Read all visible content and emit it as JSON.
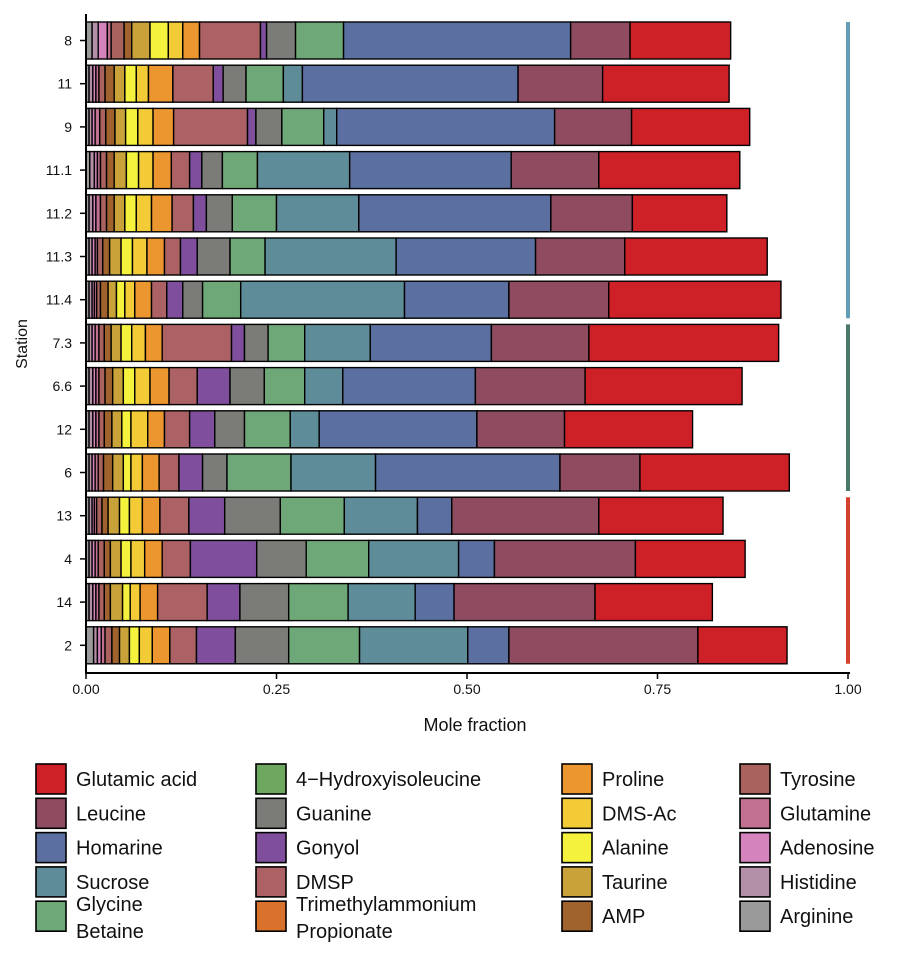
{
  "chart_data": {
    "type": "bar",
    "orientation": "horizontal",
    "stacked": true,
    "xlabel": "Mole fraction",
    "ylabel": "Station",
    "xlim": [
      0,
      1
    ],
    "xticks": [
      "0.00",
      "0.25",
      "0.50",
      "0.75",
      "1.00"
    ],
    "grid": false,
    "legend_position": "bottom",
    "categories": [
      "8",
      "11",
      "9",
      "11.1",
      "11.2",
      "11.3",
      "11.4",
      "7.3",
      "6.6",
      "12",
      "6",
      "13",
      "4",
      "14",
      "2"
    ],
    "stack_order": [
      "Arginine",
      "Histidine",
      "Adenosine",
      "Glutamine",
      "Tyrosine",
      "AMP",
      "Taurine",
      "Alanine",
      "DMS-Ac",
      "Proline",
      "Trimethylammonium Propionate",
      "DMSP",
      "Gonyol",
      "Guanine",
      "4−Hydroxyisoleucine",
      "Glycine Betaine",
      "Sucrose",
      "Homarine",
      "Leucine",
      "Glutamic acid"
    ],
    "series": [
      {
        "name": "Arginine",
        "color": "#9a9a9a",
        "values": [
          0.008,
          0.004,
          0.004,
          0.005,
          0.004,
          0.004,
          0.004,
          0.004,
          0.004,
          0.004,
          0.004,
          0.004,
          0.004,
          0.004,
          0.01
        ]
      },
      {
        "name": "Histidine",
        "color": "#b48fa8",
        "values": [
          0.008,
          0.005,
          0.004,
          0.006,
          0.005,
          0.004,
          0.004,
          0.004,
          0.005,
          0.005,
          0.004,
          0.004,
          0.004,
          0.005,
          0.005
        ]
      },
      {
        "name": "Adenosine",
        "color": "#d483bd",
        "values": [
          0.012,
          0.004,
          0.004,
          0.004,
          0.004,
          0.004,
          0.003,
          0.004,
          0.004,
          0.004,
          0.004,
          0.003,
          0.004,
          0.004,
          0.005
        ]
      },
      {
        "name": "Glutamine",
        "color": "#c2708f",
        "values": [
          0.005,
          0.004,
          0.006,
          0.004,
          0.006,
          0.003,
          0.003,
          0.005,
          0.004,
          0.004,
          0.004,
          0.003,
          0.004,
          0.004,
          0.005
        ]
      },
      {
        "name": "Tyrosine",
        "color": "#a9625e",
        "values": [
          0.017,
          0.008,
          0.008,
          0.008,
          0.008,
          0.007,
          0.005,
          0.007,
          0.008,
          0.007,
          0.007,
          0.007,
          0.008,
          0.007,
          0.009
        ]
      },
      {
        "name": "AMP",
        "color": "#a0632e",
        "values": [
          0.01,
          0.012,
          0.012,
          0.01,
          0.01,
          0.009,
          0.01,
          0.009,
          0.01,
          0.01,
          0.012,
          0.008,
          0.008,
          0.008,
          0.01
        ]
      },
      {
        "name": "Taurine",
        "color": "#c9a33a",
        "values": [
          0.024,
          0.014,
          0.014,
          0.016,
          0.014,
          0.015,
          0.011,
          0.013,
          0.014,
          0.013,
          0.014,
          0.015,
          0.014,
          0.016,
          0.013
        ]
      },
      {
        "name": "Alanine",
        "color": "#f5f23e",
        "values": [
          0.024,
          0.015,
          0.016,
          0.016,
          0.015,
          0.015,
          0.011,
          0.014,
          0.015,
          0.012,
          0.01,
          0.013,
          0.013,
          0.01,
          0.013
        ]
      },
      {
        "name": "DMS-Ac",
        "color": "#f3cb37",
        "values": [
          0.019,
          0.016,
          0.02,
          0.019,
          0.02,
          0.019,
          0.013,
          0.018,
          0.02,
          0.022,
          0.015,
          0.017,
          0.018,
          0.013,
          0.017
        ]
      },
      {
        "name": "Proline",
        "color": "#ec962f",
        "values": [
          0.022,
          0.032,
          0.027,
          0.024,
          0.027,
          0.023,
          0.022,
          0.022,
          0.025,
          0.022,
          0.022,
          0.023,
          0.023,
          0.023,
          0.023
        ]
      },
      {
        "name": "Trimethylammonium Propionate",
        "color": "#d9722c",
        "values": [
          0.0,
          0.0,
          0.0,
          0.0,
          0.0,
          0.0,
          0.0,
          0.0,
          0.0,
          0.0,
          0.0,
          0.0,
          0.0,
          0.0,
          0.0
        ]
      },
      {
        "name": "DMSP",
        "color": "#ac6265",
        "values": [
          0.08,
          0.053,
          0.097,
          0.024,
          0.028,
          0.021,
          0.02,
          0.091,
          0.037,
          0.033,
          0.026,
          0.038,
          0.037,
          0.065,
          0.035
        ]
      },
      {
        "name": "Gonyol",
        "color": "#7f4f9e",
        "values": [
          0.008,
          0.013,
          0.011,
          0.016,
          0.017,
          0.022,
          0.021,
          0.017,
          0.043,
          0.033,
          0.031,
          0.047,
          0.087,
          0.043,
          0.051
        ]
      },
      {
        "name": "Guanine",
        "color": "#7b7b78",
        "values": [
          0.038,
          0.03,
          0.034,
          0.027,
          0.034,
          0.043,
          0.026,
          0.031,
          0.045,
          0.039,
          0.032,
          0.073,
          0.065,
          0.064,
          0.07
        ]
      },
      {
        "name": "4−Hydroxyisoleucine",
        "color": "#6ea75f",
        "values": [
          0.0,
          0.0,
          0.0,
          0.0,
          0.0,
          0.0,
          0.0,
          0.0,
          0.0,
          0.0,
          0.0,
          0.0,
          0.0,
          0.0,
          0.0
        ]
      },
      {
        "name": "Glycine Betaine",
        "color": "#6fa878",
        "values": [
          0.063,
          0.049,
          0.055,
          0.046,
          0.058,
          0.046,
          0.05,
          0.048,
          0.053,
          0.06,
          0.084,
          0.084,
          0.082,
          0.078,
          0.093
        ]
      },
      {
        "name": "Sucrose",
        "color": "#5e8d99",
        "values": [
          0.0,
          0.025,
          0.017,
          0.121,
          0.108,
          0.172,
          0.215,
          0.086,
          0.05,
          0.038,
          0.111,
          0.096,
          0.118,
          0.088,
          0.142
        ]
      },
      {
        "name": "Homarine",
        "color": "#5b70a1",
        "values": [
          0.298,
          0.283,
          0.286,
          0.212,
          0.252,
          0.183,
          0.137,
          0.159,
          0.174,
          0.207,
          0.242,
          0.045,
          0.047,
          0.051,
          0.054
        ]
      },
      {
        "name": "Leucine",
        "color": "#8f4b5f",
        "values": [
          0.078,
          0.111,
          0.101,
          0.115,
          0.107,
          0.117,
          0.131,
          0.128,
          0.144,
          0.115,
          0.105,
          0.193,
          0.185,
          0.185,
          0.248
        ]
      },
      {
        "name": "Glutamic acid",
        "color": "#cd2027",
        "values": [
          0.132,
          0.166,
          0.155,
          0.185,
          0.124,
          0.187,
          0.226,
          0.249,
          0.206,
          0.168,
          0.196,
          0.163,
          0.144,
          0.154,
          0.117
        ]
      }
    ],
    "group_bars": [
      {
        "from": "8",
        "to": "11.4",
        "color": "#64a0b4"
      },
      {
        "from": "7.3",
        "to": "6",
        "color": "#4c786a"
      },
      {
        "from": "13",
        "to": "2",
        "color": "#d4412a"
      }
    ]
  },
  "legend_columns": [
    [
      "Glutamic acid",
      "Leucine",
      "Homarine",
      "Sucrose",
      "Glycine Betaine"
    ],
    [
      "4−Hydroxyisoleucine",
      "Guanine",
      "Gonyol",
      "DMSP",
      "Trimethylammonium Propionate"
    ],
    [
      "Proline",
      "DMS-Ac",
      "Alanine",
      "Taurine",
      "AMP"
    ],
    [
      "Tyrosine",
      "Glutamine",
      "Adenosine",
      "Histidine",
      "Arginine"
    ]
  ],
  "legend_display": {
    "Glycine Betaine": [
      "Glycine",
      "Betaine"
    ],
    "Trimethylammonium Propionate": [
      "Trimethylammonium",
      "Propionate"
    ]
  }
}
